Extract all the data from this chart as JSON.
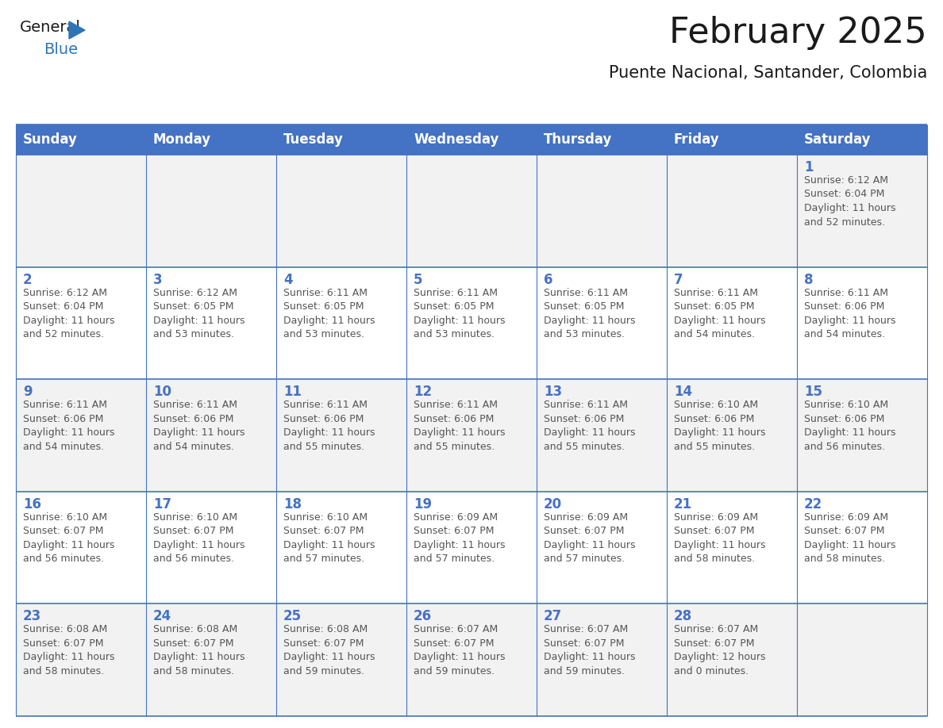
{
  "title": "February 2025",
  "subtitle": "Puente Nacional, Santander, Colombia",
  "header_bg_color": "#4472C4",
  "header_text_color": "#FFFFFF",
  "cell_bg_color_even": "#F2F2F2",
  "cell_bg_color_odd": "#FFFFFF",
  "grid_line_color": "#4472C4",
  "day_number_color": "#4472C4",
  "info_text_color": "#555555",
  "title_color": "#1a1a1a",
  "subtitle_color": "#1a1a1a",
  "days_of_week": [
    "Sunday",
    "Monday",
    "Tuesday",
    "Wednesday",
    "Thursday",
    "Friday",
    "Saturday"
  ],
  "weeks": [
    [
      {
        "day": null,
        "sunrise": null,
        "sunset": null,
        "daylight": null
      },
      {
        "day": null,
        "sunrise": null,
        "sunset": null,
        "daylight": null
      },
      {
        "day": null,
        "sunrise": null,
        "sunset": null,
        "daylight": null
      },
      {
        "day": null,
        "sunrise": null,
        "sunset": null,
        "daylight": null
      },
      {
        "day": null,
        "sunrise": null,
        "sunset": null,
        "daylight": null
      },
      {
        "day": null,
        "sunrise": null,
        "sunset": null,
        "daylight": null
      },
      {
        "day": 1,
        "sunrise": "6:12 AM",
        "sunset": "6:04 PM",
        "daylight": "11 hours\nand 52 minutes."
      }
    ],
    [
      {
        "day": 2,
        "sunrise": "6:12 AM",
        "sunset": "6:04 PM",
        "daylight": "11 hours\nand 52 minutes."
      },
      {
        "day": 3,
        "sunrise": "6:12 AM",
        "sunset": "6:05 PM",
        "daylight": "11 hours\nand 53 minutes."
      },
      {
        "day": 4,
        "sunrise": "6:11 AM",
        "sunset": "6:05 PM",
        "daylight": "11 hours\nand 53 minutes."
      },
      {
        "day": 5,
        "sunrise": "6:11 AM",
        "sunset": "6:05 PM",
        "daylight": "11 hours\nand 53 minutes."
      },
      {
        "day": 6,
        "sunrise": "6:11 AM",
        "sunset": "6:05 PM",
        "daylight": "11 hours\nand 53 minutes."
      },
      {
        "day": 7,
        "sunrise": "6:11 AM",
        "sunset": "6:05 PM",
        "daylight": "11 hours\nand 54 minutes."
      },
      {
        "day": 8,
        "sunrise": "6:11 AM",
        "sunset": "6:06 PM",
        "daylight": "11 hours\nand 54 minutes."
      }
    ],
    [
      {
        "day": 9,
        "sunrise": "6:11 AM",
        "sunset": "6:06 PM",
        "daylight": "11 hours\nand 54 minutes."
      },
      {
        "day": 10,
        "sunrise": "6:11 AM",
        "sunset": "6:06 PM",
        "daylight": "11 hours\nand 54 minutes."
      },
      {
        "day": 11,
        "sunrise": "6:11 AM",
        "sunset": "6:06 PM",
        "daylight": "11 hours\nand 55 minutes."
      },
      {
        "day": 12,
        "sunrise": "6:11 AM",
        "sunset": "6:06 PM",
        "daylight": "11 hours\nand 55 minutes."
      },
      {
        "day": 13,
        "sunrise": "6:11 AM",
        "sunset": "6:06 PM",
        "daylight": "11 hours\nand 55 minutes."
      },
      {
        "day": 14,
        "sunrise": "6:10 AM",
        "sunset": "6:06 PM",
        "daylight": "11 hours\nand 55 minutes."
      },
      {
        "day": 15,
        "sunrise": "6:10 AM",
        "sunset": "6:06 PM",
        "daylight": "11 hours\nand 56 minutes."
      }
    ],
    [
      {
        "day": 16,
        "sunrise": "6:10 AM",
        "sunset": "6:07 PM",
        "daylight": "11 hours\nand 56 minutes."
      },
      {
        "day": 17,
        "sunrise": "6:10 AM",
        "sunset": "6:07 PM",
        "daylight": "11 hours\nand 56 minutes."
      },
      {
        "day": 18,
        "sunrise": "6:10 AM",
        "sunset": "6:07 PM",
        "daylight": "11 hours\nand 57 minutes."
      },
      {
        "day": 19,
        "sunrise": "6:09 AM",
        "sunset": "6:07 PM",
        "daylight": "11 hours\nand 57 minutes."
      },
      {
        "day": 20,
        "sunrise": "6:09 AM",
        "sunset": "6:07 PM",
        "daylight": "11 hours\nand 57 minutes."
      },
      {
        "day": 21,
        "sunrise": "6:09 AM",
        "sunset": "6:07 PM",
        "daylight": "11 hours\nand 58 minutes."
      },
      {
        "day": 22,
        "sunrise": "6:09 AM",
        "sunset": "6:07 PM",
        "daylight": "11 hours\nand 58 minutes."
      }
    ],
    [
      {
        "day": 23,
        "sunrise": "6:08 AM",
        "sunset": "6:07 PM",
        "daylight": "11 hours\nand 58 minutes."
      },
      {
        "day": 24,
        "sunrise": "6:08 AM",
        "sunset": "6:07 PM",
        "daylight": "11 hours\nand 58 minutes."
      },
      {
        "day": 25,
        "sunrise": "6:08 AM",
        "sunset": "6:07 PM",
        "daylight": "11 hours\nand 59 minutes."
      },
      {
        "day": 26,
        "sunrise": "6:07 AM",
        "sunset": "6:07 PM",
        "daylight": "11 hours\nand 59 minutes."
      },
      {
        "day": 27,
        "sunrise": "6:07 AM",
        "sunset": "6:07 PM",
        "daylight": "11 hours\nand 59 minutes."
      },
      {
        "day": 28,
        "sunrise": "6:07 AM",
        "sunset": "6:07 PM",
        "daylight": "12 hours\nand 0 minutes."
      },
      {
        "day": null,
        "sunrise": null,
        "sunset": null,
        "daylight": null
      }
    ]
  ],
  "title_fontsize": 32,
  "subtitle_fontsize": 15,
  "header_fontsize": 12,
  "day_num_fontsize": 12,
  "info_fontsize": 9,
  "logo_general_fontsize": 14,
  "logo_blue_fontsize": 14
}
